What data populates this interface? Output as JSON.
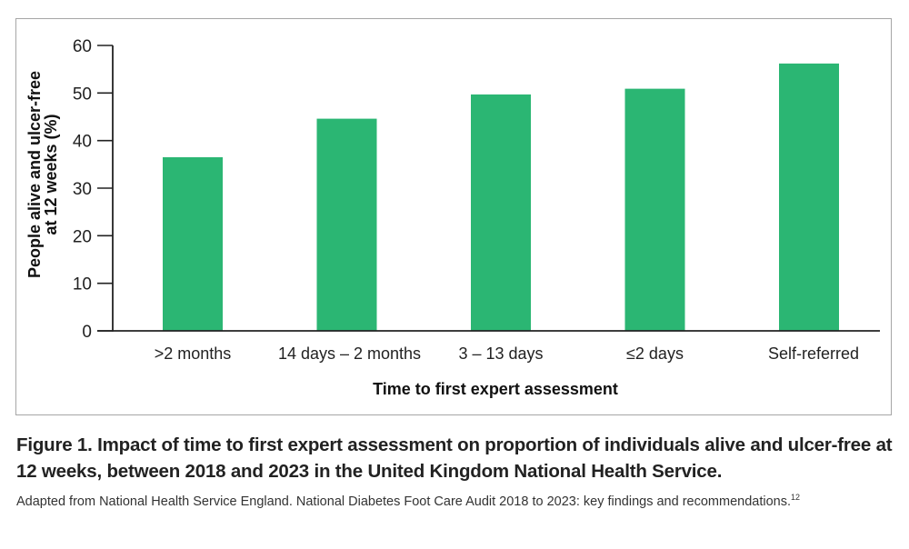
{
  "chart_data": {
    "type": "bar",
    "title": "",
    "xlabel": "Time to first expert assessment",
    "ylabel_lines": [
      "People alive and ulcer-free",
      "at 12 weeks (%)"
    ],
    "ylabel": "People alive and ulcer-free at 12 weeks (%)",
    "categories": [
      ">2 months",
      "14 days – 2 months",
      "3 – 13 days",
      "≤2 days",
      "Self-referred"
    ],
    "values": [
      36.5,
      44.6,
      49.7,
      50.9,
      56.2
    ],
    "ylim": [
      0,
      60
    ],
    "yticks": [
      0,
      10,
      20,
      30,
      40,
      50,
      60
    ],
    "grid": false,
    "legend": "none",
    "bar_color": "#2bb673",
    "axis_color": "#222222"
  },
  "figure": {
    "caption": "Figure 1. Impact of time to first expert assessment on proportion of individuals alive and ulcer-free at 12 weeks, between 2018 and 2023 in the United Kingdom National Health Service.",
    "source_text": "Adapted from National Health Service England. National Diabetes Foot Care Audit 2018 to 2023: key findings and recommendations.",
    "source_ref": "12"
  }
}
